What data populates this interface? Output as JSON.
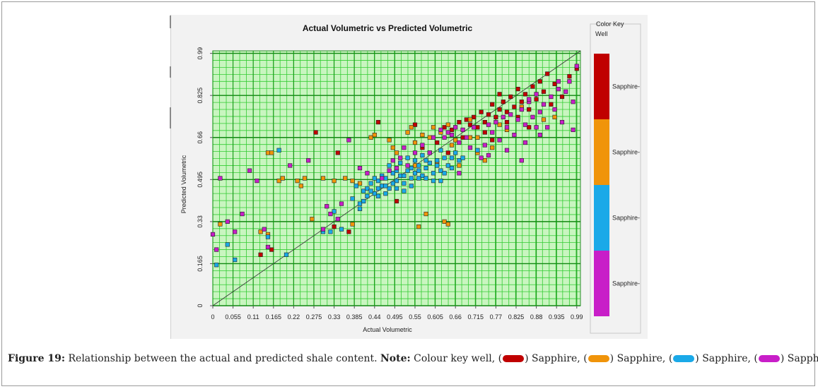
{
  "chart_data": {
    "type": "scatter",
    "title": "Actual Volumetric vs Predicted Volumetric",
    "xlabel": "Actual Volumetric",
    "ylabel": "Predicted Volumetric",
    "xlim": [
      0,
      1.0
    ],
    "ylim": [
      0,
      1.0
    ],
    "x_ticks": [
      "0",
      "0.055",
      "0.11",
      "0.165",
      "0.22",
      "0.275",
      "0.33",
      "0.385",
      "0.44",
      "0.495",
      "0.55",
      "0.605",
      "0.66",
      "0.715",
      "0.77",
      "0.825",
      "0.88",
      "0.935",
      "0.99"
    ],
    "y_ticks": [
      "0",
      "0.165",
      "0.33",
      "0.495",
      "0.66",
      "0.825",
      "0.99"
    ],
    "grid": true,
    "reference_line": "y = x",
    "legend": {
      "title": "Color Key Well",
      "position": "right",
      "entries": [
        {
          "label": "Sapphire-",
          "color": "#c00000"
        },
        {
          "label": "Sapphire-",
          "color": "#f0940a"
        },
        {
          "label": "Sapphire-",
          "color": "#1aa9e8"
        },
        {
          "label": "Sapphire-",
          "color": "#c81ec8"
        }
      ]
    },
    "series": [
      {
        "color": "#c00000",
        "points": [
          [
            0.28,
            0.68
          ],
          [
            0.33,
            0.31
          ],
          [
            0.37,
            0.29
          ],
          [
            0.13,
            0.2
          ],
          [
            0.16,
            0.22
          ],
          [
            0.34,
            0.6
          ],
          [
            0.5,
            0.41
          ],
          [
            0.57,
            0.62
          ],
          [
            0.61,
            0.64
          ],
          [
            0.63,
            0.7
          ],
          [
            0.65,
            0.69
          ],
          [
            0.67,
            0.72
          ],
          [
            0.69,
            0.73
          ],
          [
            0.7,
            0.71
          ],
          [
            0.71,
            0.74
          ],
          [
            0.72,
            0.7
          ],
          [
            0.73,
            0.76
          ],
          [
            0.74,
            0.72
          ],
          [
            0.75,
            0.75
          ],
          [
            0.76,
            0.79
          ],
          [
            0.77,
            0.74
          ],
          [
            0.78,
            0.77
          ],
          [
            0.79,
            0.8
          ],
          [
            0.8,
            0.76
          ],
          [
            0.81,
            0.82
          ],
          [
            0.82,
            0.78
          ],
          [
            0.83,
            0.85
          ],
          [
            0.84,
            0.8
          ],
          [
            0.85,
            0.83
          ],
          [
            0.86,
            0.77
          ],
          [
            0.87,
            0.86
          ],
          [
            0.88,
            0.81
          ],
          [
            0.89,
            0.88
          ],
          [
            0.9,
            0.84
          ],
          [
            0.91,
            0.91
          ],
          [
            0.92,
            0.79
          ],
          [
            0.93,
            0.87
          ],
          [
            0.95,
            0.82
          ],
          [
            0.97,
            0.9
          ],
          [
            0.99,
            0.93
          ],
          [
            0.74,
            0.68
          ],
          [
            0.68,
            0.66
          ],
          [
            0.8,
            0.72
          ],
          [
            0.86,
            0.7
          ],
          [
            0.76,
            0.65
          ],
          [
            0.64,
            0.6
          ],
          [
            0.45,
            0.72
          ],
          [
            0.55,
            0.71
          ],
          [
            0.78,
            0.83
          ],
          [
            0.83,
            0.74
          ]
        ]
      },
      {
        "color": "#f0940a",
        "points": [
          [
            0.02,
            0.32
          ],
          [
            0.15,
            0.6
          ],
          [
            0.16,
            0.6
          ],
          [
            0.18,
            0.49
          ],
          [
            0.19,
            0.5
          ],
          [
            0.23,
            0.49
          ],
          [
            0.24,
            0.47
          ],
          [
            0.25,
            0.5
          ],
          [
            0.3,
            0.5
          ],
          [
            0.33,
            0.49
          ],
          [
            0.36,
            0.5
          ],
          [
            0.38,
            0.49
          ],
          [
            0.4,
            0.48
          ],
          [
            0.43,
            0.66
          ],
          [
            0.44,
            0.67
          ],
          [
            0.48,
            0.65
          ],
          [
            0.49,
            0.62
          ],
          [
            0.5,
            0.6
          ],
          [
            0.53,
            0.68
          ],
          [
            0.54,
            0.7
          ],
          [
            0.55,
            0.64
          ],
          [
            0.57,
            0.67
          ],
          [
            0.59,
            0.66
          ],
          [
            0.6,
            0.7
          ],
          [
            0.61,
            0.56
          ],
          [
            0.62,
            0.68
          ],
          [
            0.64,
            0.71
          ],
          [
            0.65,
            0.63
          ],
          [
            0.66,
            0.65
          ],
          [
            0.67,
            0.55
          ],
          [
            0.7,
            0.66
          ],
          [
            0.72,
            0.6
          ],
          [
            0.74,
            0.57
          ],
          [
            0.76,
            0.62
          ],
          [
            0.8,
            0.69
          ],
          [
            0.84,
            0.78
          ],
          [
            0.9,
            0.73
          ],
          [
            0.93,
            0.74
          ],
          [
            0.13,
            0.29
          ],
          [
            0.15,
            0.28
          ],
          [
            0.38,
            0.32
          ],
          [
            0.56,
            0.31
          ],
          [
            0.58,
            0.36
          ],
          [
            0.63,
            0.33
          ],
          [
            0.64,
            0.32
          ],
          [
            0.7,
            0.73
          ],
          [
            0.72,
            0.66
          ],
          [
            0.78,
            0.71
          ],
          [
            0.55,
            0.55
          ],
          [
            0.27,
            0.34
          ]
        ]
      },
      {
        "color": "#1aa9e8",
        "points": [
          [
            0.01,
            0.16
          ],
          [
            0.04,
            0.24
          ],
          [
            0.06,
            0.18
          ],
          [
            0.15,
            0.27
          ],
          [
            0.18,
            0.61
          ],
          [
            0.2,
            0.2
          ],
          [
            0.3,
            0.29
          ],
          [
            0.32,
            0.29
          ],
          [
            0.33,
            0.37
          ],
          [
            0.35,
            0.3
          ],
          [
            0.38,
            0.42
          ],
          [
            0.4,
            0.4
          ],
          [
            0.41,
            0.45
          ],
          [
            0.42,
            0.46
          ],
          [
            0.43,
            0.48
          ],
          [
            0.44,
            0.44
          ],
          [
            0.45,
            0.49
          ],
          [
            0.46,
            0.47
          ],
          [
            0.47,
            0.5
          ],
          [
            0.48,
            0.46
          ],
          [
            0.49,
            0.52
          ],
          [
            0.5,
            0.49
          ],
          [
            0.51,
            0.51
          ],
          [
            0.52,
            0.48
          ],
          [
            0.53,
            0.53
          ],
          [
            0.54,
            0.5
          ],
          [
            0.55,
            0.52
          ],
          [
            0.56,
            0.55
          ],
          [
            0.57,
            0.51
          ],
          [
            0.58,
            0.54
          ],
          [
            0.59,
            0.56
          ],
          [
            0.6,
            0.52
          ],
          [
            0.61,
            0.57
          ],
          [
            0.62,
            0.53
          ],
          [
            0.63,
            0.58
          ],
          [
            0.64,
            0.55
          ],
          [
            0.65,
            0.54
          ],
          [
            0.66,
            0.6
          ],
          [
            0.67,
            0.57
          ],
          [
            0.68,
            0.58
          ],
          [
            0.45,
            0.43
          ],
          [
            0.47,
            0.44
          ],
          [
            0.5,
            0.46
          ],
          [
            0.52,
            0.45
          ],
          [
            0.54,
            0.47
          ],
          [
            0.56,
            0.5
          ],
          [
            0.58,
            0.5
          ],
          [
            0.6,
            0.49
          ],
          [
            0.43,
            0.45
          ],
          [
            0.48,
            0.55
          ],
          [
            0.51,
            0.56
          ],
          [
            0.53,
            0.58
          ],
          [
            0.55,
            0.57
          ],
          [
            0.57,
            0.59
          ],
          [
            0.59,
            0.6
          ],
          [
            0.62,
            0.61
          ],
          [
            0.49,
            0.48
          ],
          [
            0.46,
            0.51
          ],
          [
            0.44,
            0.5
          ],
          [
            0.42,
            0.43
          ],
          [
            0.39,
            0.47
          ],
          [
            0.41,
            0.41
          ],
          [
            0.52,
            0.51
          ],
          [
            0.54,
            0.54
          ],
          [
            0.56,
            0.53
          ],
          [
            0.58,
            0.57
          ],
          [
            0.61,
            0.55
          ],
          [
            0.63,
            0.52
          ],
          [
            0.65,
            0.58
          ],
          [
            0.5,
            0.53
          ],
          [
            0.47,
            0.47
          ],
          [
            0.45,
            0.46
          ],
          [
            0.72,
            0.61
          ],
          [
            0.62,
            0.49
          ],
          [
            0.4,
            0.38
          ]
        ]
      },
      {
        "color": "#c81ec8",
        "points": [
          [
            0.0,
            0.28
          ],
          [
            0.01,
            0.22
          ],
          [
            0.02,
            0.5
          ],
          [
            0.04,
            0.33
          ],
          [
            0.06,
            0.29
          ],
          [
            0.08,
            0.36
          ],
          [
            0.1,
            0.53
          ],
          [
            0.12,
            0.49
          ],
          [
            0.14,
            0.3
          ],
          [
            0.15,
            0.23
          ],
          [
            0.21,
            0.55
          ],
          [
            0.26,
            0.57
          ],
          [
            0.31,
            0.39
          ],
          [
            0.32,
            0.36
          ],
          [
            0.34,
            0.34
          ],
          [
            0.37,
            0.65
          ],
          [
            0.4,
            0.54
          ],
          [
            0.42,
            0.52
          ],
          [
            0.46,
            0.5
          ],
          [
            0.48,
            0.53
          ],
          [
            0.49,
            0.57
          ],
          [
            0.5,
            0.54
          ],
          [
            0.51,
            0.58
          ],
          [
            0.52,
            0.62
          ],
          [
            0.53,
            0.55
          ],
          [
            0.55,
            0.6
          ],
          [
            0.57,
            0.63
          ],
          [
            0.59,
            0.6
          ],
          [
            0.6,
            0.66
          ],
          [
            0.62,
            0.69
          ],
          [
            0.63,
            0.66
          ],
          [
            0.64,
            0.68
          ],
          [
            0.65,
            0.67
          ],
          [
            0.66,
            0.7
          ],
          [
            0.67,
            0.64
          ],
          [
            0.68,
            0.69
          ],
          [
            0.69,
            0.66
          ],
          [
            0.7,
            0.62
          ],
          [
            0.71,
            0.7
          ],
          [
            0.73,
            0.58
          ],
          [
            0.74,
            0.63
          ],
          [
            0.75,
            0.71
          ],
          [
            0.76,
            0.68
          ],
          [
            0.77,
            0.72
          ],
          [
            0.78,
            0.65
          ],
          [
            0.79,
            0.74
          ],
          [
            0.8,
            0.7
          ],
          [
            0.81,
            0.75
          ],
          [
            0.82,
            0.67
          ],
          [
            0.83,
            0.73
          ],
          [
            0.84,
            0.77
          ],
          [
            0.85,
            0.71
          ],
          [
            0.86,
            0.8
          ],
          [
            0.87,
            0.74
          ],
          [
            0.88,
            0.83
          ],
          [
            0.89,
            0.76
          ],
          [
            0.9,
            0.79
          ],
          [
            0.91,
            0.7
          ],
          [
            0.92,
            0.82
          ],
          [
            0.93,
            0.77
          ],
          [
            0.94,
            0.85
          ],
          [
            0.95,
            0.72
          ],
          [
            0.96,
            0.84
          ],
          [
            0.97,
            0.88
          ],
          [
            0.98,
            0.8
          ],
          [
            0.99,
            0.94
          ],
          [
            0.98,
            0.69
          ],
          [
            0.94,
            0.88
          ],
          [
            0.85,
            0.64
          ],
          [
            0.8,
            0.61
          ],
          [
            0.75,
            0.59
          ],
          [
            0.84,
            0.57
          ],
          [
            0.89,
            0.67
          ],
          [
            0.67,
            0.52
          ],
          [
            0.35,
            0.4
          ],
          [
            0.3,
            0.3
          ],
          [
            0.86,
            0.81
          ],
          [
            0.88,
            0.7
          ]
        ]
      }
    ]
  },
  "caption": {
    "label": "Figure 19:",
    "text": "Relationship between the actual and predicted shale content.",
    "note_label": "Note:",
    "note_intro": "Colour key well, (",
    "entries": [
      ") Sapphire, (",
      ") Sapphire, (",
      ") Sapphire, (",
      ") Sapphire."
    ]
  }
}
